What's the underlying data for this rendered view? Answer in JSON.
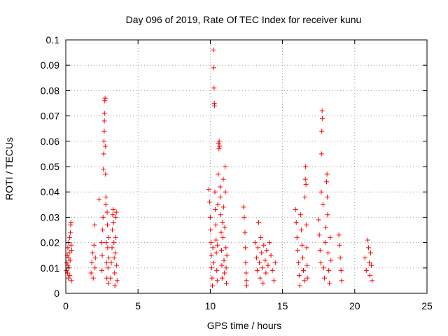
{
  "chart_data": {
    "type": "scatter",
    "title": "Day 096 of 2019, Rate Of TEC Index for receiver kunu",
    "xlabel": "GPS time / hours",
    "ylabel": "ROTI / TECUs",
    "xlim": [
      0,
      25
    ],
    "ylim": [
      0,
      0.1
    ],
    "x_ticks": [
      "0",
      "5",
      "10",
      "15",
      "20",
      "25"
    ],
    "y_ticks": [
      "0",
      "0.01",
      "0.02",
      "0.03",
      "0.04",
      "0.05",
      "0.06",
      "0.07",
      "0.08",
      "0.09",
      "0.1"
    ],
    "grid": true,
    "marker": "+",
    "marker_color": "#ff0000",
    "clusters_note_hidden": false,
    "series": [
      {
        "points": [
          [
            0.05,
            0.009
          ],
          [
            0.08,
            0.012
          ],
          [
            0.1,
            0.015
          ],
          [
            0.12,
            0.008
          ],
          [
            0.14,
            0.018
          ],
          [
            0.15,
            0.011
          ],
          [
            0.17,
            0.006
          ],
          [
            0.19,
            0.014
          ],
          [
            0.2,
            0.02
          ],
          [
            0.22,
            0.01
          ],
          [
            0.24,
            0.016
          ],
          [
            0.26,
            0.022
          ],
          [
            0.28,
            0.007
          ],
          [
            0.3,
            0.013
          ],
          [
            0.32,
            0.024
          ],
          [
            0.34,
            0.027
          ],
          [
            0.36,
            0.028
          ],
          [
            0.37,
            0.019
          ],
          [
            0.39,
            0.005
          ],
          [
            0.41,
            0.017
          ],
          [
            1.75,
            0.008
          ],
          [
            1.8,
            0.012
          ],
          [
            1.85,
            0.016
          ],
          [
            1.9,
            0.006
          ],
          [
            1.95,
            0.019
          ],
          [
            2.0,
            0.027
          ],
          [
            2.02,
            0.01
          ],
          [
            2.05,
            0.014
          ],
          [
            2.3,
            0.037
          ],
          [
            2.45,
            0.02
          ],
          [
            2.5,
            0.009
          ],
          [
            2.52,
            0.015
          ],
          [
            2.55,
            0.025
          ],
          [
            2.58,
            0.03
          ],
          [
            2.6,
            0.049
          ],
          [
            2.62,
            0.055
          ],
          [
            2.64,
            0.06
          ],
          [
            2.66,
            0.064
          ],
          [
            2.67,
            0.068
          ],
          [
            2.68,
            0.071
          ],
          [
            2.7,
            0.076
          ],
          [
            2.72,
            0.077
          ],
          [
            2.73,
            0.058
          ],
          [
            2.75,
            0.047
          ],
          [
            2.77,
            0.035
          ],
          [
            2.78,
            0.038
          ],
          [
            2.8,
            0.02
          ],
          [
            2.82,
            0.012
          ],
          [
            2.84,
            0.006
          ],
          [
            2.86,
            0.032
          ],
          [
            2.88,
            0.027
          ],
          [
            2.9,
            0.018
          ],
          [
            2.92,
            0.01
          ],
          [
            2.94,
            0.004
          ],
          [
            2.96,
            0.022
          ],
          [
            2.98,
            0.014
          ],
          [
            3.1,
            0.006
          ],
          [
            3.15,
            0.012
          ],
          [
            3.2,
            0.018
          ],
          [
            3.22,
            0.025
          ],
          [
            3.25,
            0.031
          ],
          [
            3.28,
            0.033
          ],
          [
            3.3,
            0.028
          ],
          [
            3.33,
            0.02
          ],
          [
            3.35,
            0.014
          ],
          [
            3.38,
            0.008
          ],
          [
            3.4,
            0.003
          ],
          [
            3.42,
            0.016
          ],
          [
            3.45,
            0.022
          ],
          [
            3.47,
            0.03
          ],
          [
            3.5,
            0.032
          ],
          [
            3.52,
            0.011
          ],
          [
            3.55,
            0.005
          ],
          [
            9.9,
            0.041
          ],
          [
            9.95,
            0.036
          ],
          [
            10.0,
            0.03
          ],
          [
            10.02,
            0.025
          ],
          [
            10.05,
            0.02
          ],
          [
            10.08,
            0.015
          ],
          [
            10.1,
            0.01
          ],
          [
            10.12,
            0.006
          ],
          [
            10.15,
            0.003
          ],
          [
            10.18,
            0.018
          ],
          [
            10.2,
            0.012
          ],
          [
            10.22,
            0.096
          ],
          [
            10.24,
            0.089
          ],
          [
            10.26,
            0.081
          ],
          [
            10.28,
            0.075
          ],
          [
            10.3,
            0.074
          ],
          [
            10.32,
            0.04
          ],
          [
            10.35,
            0.033
          ],
          [
            10.38,
            0.027
          ],
          [
            10.4,
            0.021
          ],
          [
            10.42,
            0.016
          ],
          [
            10.45,
            0.009
          ],
          [
            10.48,
            0.005
          ],
          [
            10.5,
            0.019
          ],
          [
            10.52,
            0.035
          ],
          [
            10.55,
            0.047
          ],
          [
            10.58,
            0.059
          ],
          [
            10.6,
            0.057
          ],
          [
            10.62,
            0.06
          ],
          [
            10.65,
            0.058
          ],
          [
            10.68,
            0.042
          ],
          [
            10.7,
            0.038
          ],
          [
            10.72,
            0.031
          ],
          [
            10.75,
            0.024
          ],
          [
            10.78,
            0.017
          ],
          [
            10.8,
            0.011
          ],
          [
            10.82,
            0.006
          ],
          [
            10.85,
            0.028
          ],
          [
            10.88,
            0.022
          ],
          [
            10.9,
            0.045
          ],
          [
            10.92,
            0.034
          ],
          [
            10.95,
            0.013
          ],
          [
            10.98,
            0.008
          ],
          [
            11.0,
            0.026
          ],
          [
            11.02,
            0.05
          ],
          [
            11.05,
            0.04
          ],
          [
            11.08,
            0.018
          ],
          [
            11.1,
            0.01
          ],
          [
            11.12,
            0.004
          ],
          [
            11.15,
            0.015
          ],
          [
            12.3,
            0.034
          ],
          [
            12.35,
            0.03
          ],
          [
            12.4,
            0.024
          ],
          [
            12.42,
            0.018
          ],
          [
            12.45,
            0.012
          ],
          [
            12.48,
            0.008
          ],
          [
            12.5,
            0.005
          ],
          [
            12.52,
            0.003
          ],
          [
            13.1,
            0.02
          ],
          [
            13.2,
            0.014
          ],
          [
            13.25,
            0.009
          ],
          [
            13.3,
            0.018
          ],
          [
            13.35,
            0.028
          ],
          [
            13.4,
            0.012
          ],
          [
            13.45,
            0.006
          ],
          [
            13.5,
            0.022
          ],
          [
            13.55,
            0.016
          ],
          [
            13.6,
            0.01
          ],
          [
            13.65,
            0.004
          ],
          [
            13.7,
            0.019
          ],
          [
            13.8,
            0.013
          ],
          [
            13.85,
            0.008
          ],
          [
            13.9,
            0.017
          ],
          [
            14.0,
            0.011
          ],
          [
            14.1,
            0.02
          ],
          [
            14.2,
            0.015
          ],
          [
            14.3,
            0.009
          ],
          [
            14.4,
            0.005
          ],
          [
            14.5,
            0.012
          ],
          [
            15.9,
            0.033
          ],
          [
            15.95,
            0.028
          ],
          [
            16.0,
            0.022
          ],
          [
            16.05,
            0.017
          ],
          [
            16.1,
            0.012
          ],
          [
            16.15,
            0.007
          ],
          [
            16.2,
            0.003
          ],
          [
            16.25,
            0.031
          ],
          [
            16.3,
            0.025
          ],
          [
            16.35,
            0.019
          ],
          [
            16.4,
            0.014
          ],
          [
            16.45,
            0.009
          ],
          [
            16.5,
            0.005
          ],
          [
            16.55,
            0.038
          ],
          [
            16.58,
            0.045
          ],
          [
            16.6,
            0.05
          ],
          [
            16.62,
            0.043
          ],
          [
            16.65,
            0.027
          ],
          [
            16.68,
            0.018
          ],
          [
            16.7,
            0.011
          ],
          [
            16.72,
            0.006
          ],
          [
            17.5,
            0.029
          ],
          [
            17.55,
            0.023
          ],
          [
            17.6,
            0.017
          ],
          [
            17.65,
            0.012
          ],
          [
            17.68,
            0.04
          ],
          [
            17.7,
            0.055
          ],
          [
            17.72,
            0.064
          ],
          [
            17.74,
            0.072
          ],
          [
            17.76,
            0.069
          ],
          [
            17.8,
            0.035
          ],
          [
            17.85,
            0.01
          ],
          [
            17.9,
            0.006
          ],
          [
            17.95,
            0.02
          ],
          [
            18.0,
            0.026
          ],
          [
            18.05,
            0.044
          ],
          [
            18.08,
            0.047
          ],
          [
            18.1,
            0.038
          ],
          [
            18.12,
            0.031
          ],
          [
            18.15,
            0.016
          ],
          [
            18.2,
            0.009
          ],
          [
            18.25,
            0.004
          ],
          [
            18.3,
            0.022
          ],
          [
            18.35,
            0.013
          ],
          [
            18.9,
            0.023
          ],
          [
            18.95,
            0.019
          ],
          [
            19.0,
            0.014
          ],
          [
            19.05,
            0.009
          ],
          [
            19.1,
            0.005
          ],
          [
            20.7,
            0.014
          ],
          [
            20.8,
            0.009
          ],
          [
            20.9,
            0.021
          ],
          [
            20.95,
            0.018
          ],
          [
            21.0,
            0.012
          ],
          [
            21.05,
            0.007
          ],
          [
            21.1,
            0.016
          ],
          [
            21.15,
            0.011
          ],
          [
            21.2,
            0.005
          ]
        ]
      }
    ]
  }
}
